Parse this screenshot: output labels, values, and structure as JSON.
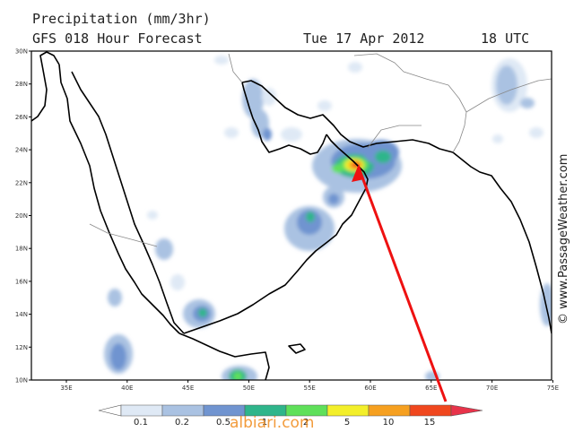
{
  "header": {
    "title": "Precipitation (mm/3hr)",
    "subtitle": "GFS 018 Hour Forecast",
    "date": "Tue 17 Apr 2012",
    "time": "18 UTC"
  },
  "map": {
    "lat_labels": [
      "30N",
      "28N",
      "26N",
      "24N",
      "22N",
      "20N",
      "18N",
      "16N",
      "14N",
      "12N",
      "10N"
    ],
    "lon_labels": [
      "35E",
      "40E",
      "45E",
      "50E",
      "55E",
      "60E",
      "65E",
      "70E",
      "75E"
    ]
  },
  "legend": {
    "labels": [
      "0.1",
      "0.2",
      "0.5",
      "1",
      "2",
      "5",
      "10",
      "15"
    ],
    "colors": [
      "#ffffff",
      "#dfe9f5",
      "#aac2e2",
      "#7094d0",
      "#2fb58b",
      "#5fe05a",
      "#f3ef2a",
      "#f6a020",
      "#f0471e",
      "#e8334a"
    ]
  },
  "credit": "© www.PassageWeather.com",
  "watermark": "albiari.com"
}
